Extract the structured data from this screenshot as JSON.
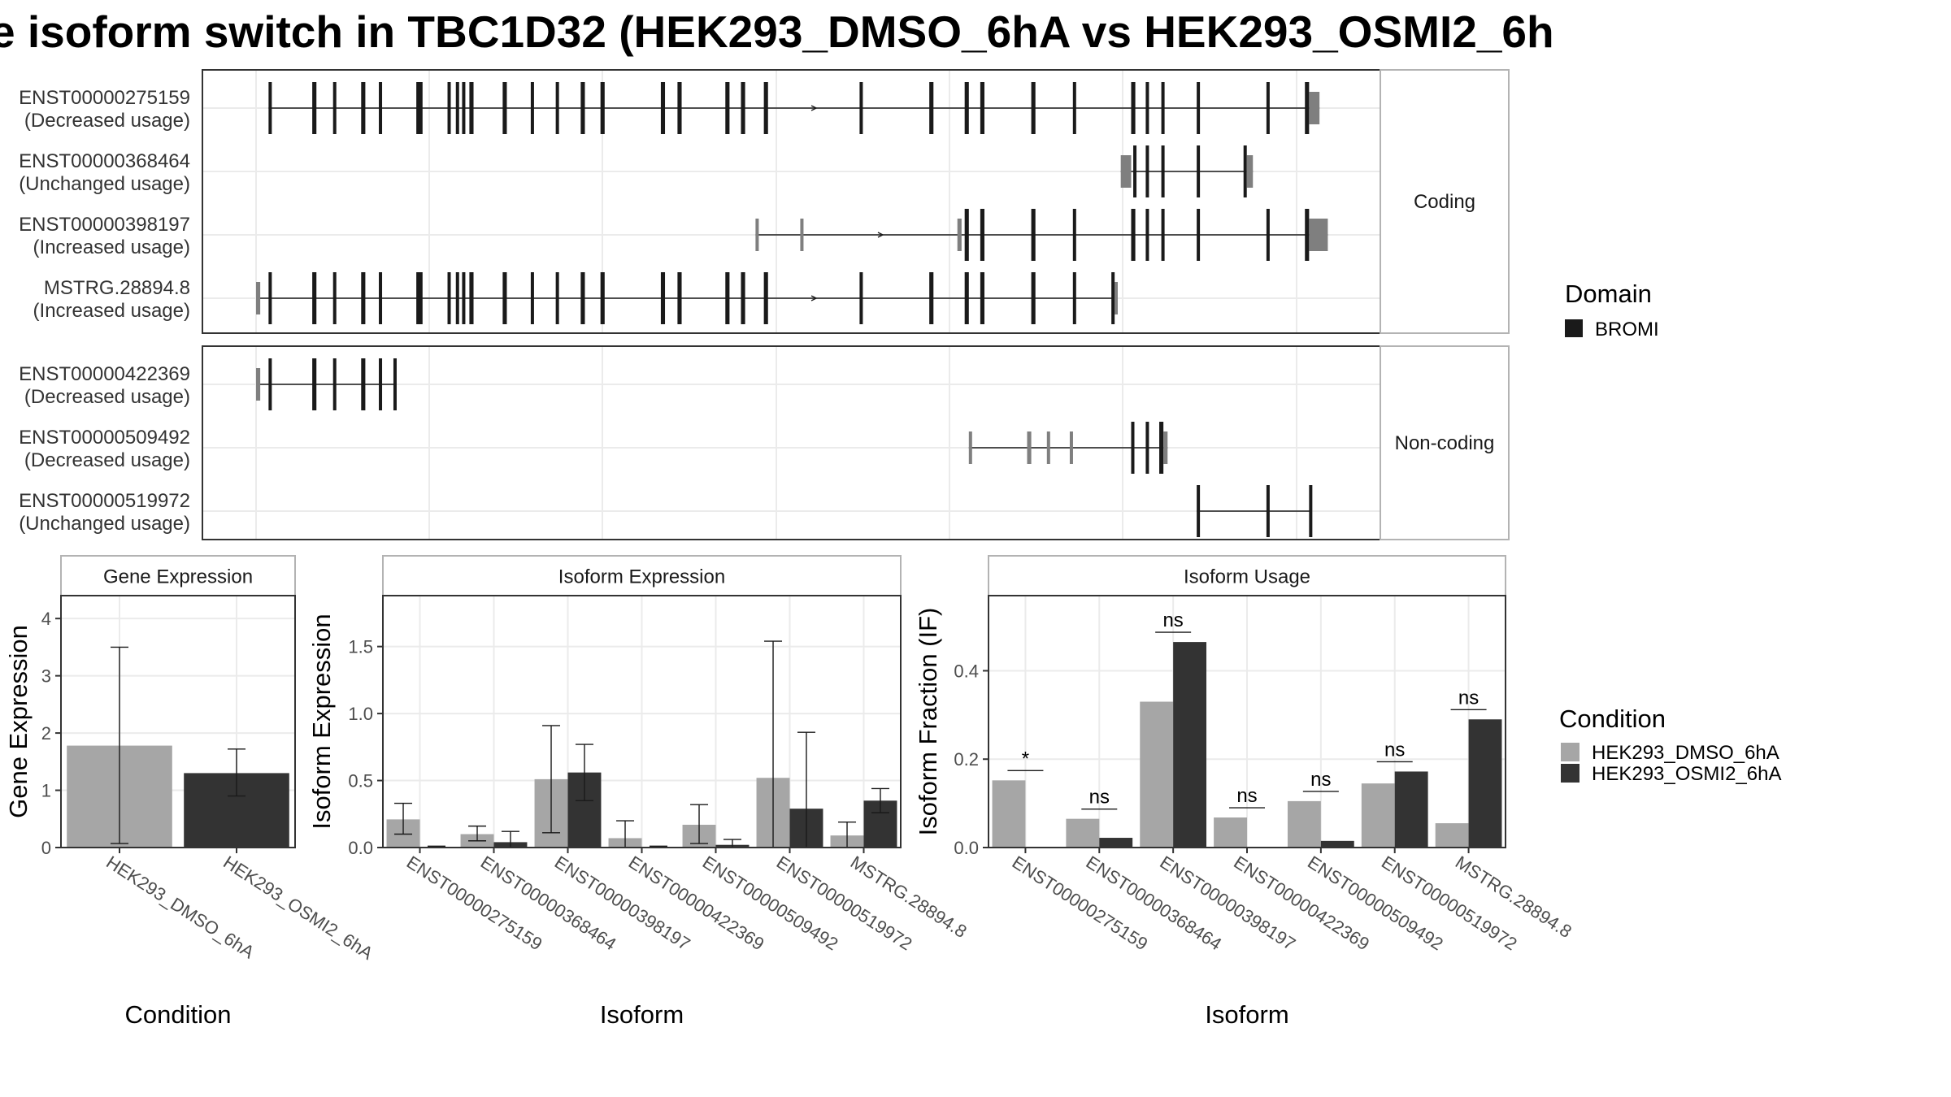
{
  "chart_data": [
    {
      "type": "gene-structure",
      "title": "e isoform switch in TBC1D32 (HEK293_DMSO_6hA vs HEK293_OSMI2_6h",
      "domain_legend": {
        "title": "Domain",
        "entries": [
          {
            "name": "BROMI",
            "color": "#1a1a1a"
          }
        ]
      },
      "panels": [
        {
          "label": "Coding",
          "rows": [
            {
              "isoform": "ENST00000275159",
              "usage": "(Decreased usage)",
              "exons": [
                [
                  0.012,
                  0.015,
                  "d"
                ],
                [
                  0.054,
                  0.058,
                  "d"
                ],
                [
                  0.074,
                  0.077,
                  "d"
                ],
                [
                  0.101,
                  0.105,
                  "d"
                ],
                [
                  0.118,
                  0.121,
                  "d"
                ],
                [
                  0.154,
                  0.16,
                  "d"
                ],
                [
                  0.184,
                  0.187,
                  "d"
                ],
                [
                  0.192,
                  0.194,
                  "d"
                ],
                [
                  0.198,
                  0.2,
                  "d"
                ],
                [
                  0.205,
                  0.209,
                  "d"
                ],
                [
                  0.237,
                  0.241,
                  "d"
                ],
                [
                  0.264,
                  0.267,
                  "d"
                ],
                [
                  0.288,
                  0.291,
                  "d"
                ],
                [
                  0.312,
                  0.316,
                  "d"
                ],
                [
                  0.331,
                  0.335,
                  "d"
                ],
                [
                  0.389,
                  0.393,
                  "d"
                ],
                [
                  0.405,
                  0.409,
                  "d"
                ],
                [
                  0.451,
                  0.455,
                  "d"
                ],
                [
                  0.466,
                  0.47,
                  "d"
                ],
                [
                  0.488,
                  0.492,
                  "d"
                ],
                [
                  0.58,
                  0.583,
                  "d"
                ],
                [
                  0.647,
                  0.651,
                  "d"
                ],
                [
                  0.681,
                  0.685,
                  "d"
                ],
                [
                  0.696,
                  0.7,
                  "d"
                ],
                [
                  0.745,
                  0.749,
                  "d"
                ],
                [
                  0.785,
                  0.788,
                  "d"
                ],
                [
                  0.841,
                  0.845,
                  "d"
                ],
                [
                  0.855,
                  0.858,
                  "d"
                ],
                [
                  0.87,
                  0.873,
                  "d"
                ],
                [
                  0.904,
                  0.907,
                  "d"
                ],
                [
                  0.971,
                  0.974,
                  "d"
                ],
                [
                  1.008,
                  1.012,
                  "d"
                ],
                [
                  1.012,
                  1.022,
                  "g"
                ]
              ]
            },
            {
              "isoform": "ENST00000368464",
              "usage": "(Unchanged usage)",
              "exons": [
                [
                  0.831,
                  0.841,
                  "g"
                ],
                [
                  0.843,
                  0.845,
                  "d"
                ],
                [
                  0.855,
                  0.858,
                  "d"
                ],
                [
                  0.87,
                  0.873,
                  "d"
                ],
                [
                  0.904,
                  0.907,
                  "d"
                ],
                [
                  0.949,
                  0.952,
                  "d"
                ],
                [
                  0.952,
                  0.958,
                  "g"
                ]
              ]
            },
            {
              "isoform": "ENST00000398197",
              "usage": "(Increased usage)",
              "exons": [
                [
                  0.48,
                  0.483,
                  "g"
                ],
                [
                  0.523,
                  0.526,
                  "g"
                ],
                [
                  0.674,
                  0.678,
                  "g"
                ],
                [
                  0.681,
                  0.685,
                  "d"
                ],
                [
                  0.696,
                  0.7,
                  "d"
                ],
                [
                  0.745,
                  0.749,
                  "d"
                ],
                [
                  0.785,
                  0.788,
                  "d"
                ],
                [
                  0.841,
                  0.845,
                  "d"
                ],
                [
                  0.855,
                  0.858,
                  "d"
                ],
                [
                  0.87,
                  0.873,
                  "d"
                ],
                [
                  0.904,
                  0.907,
                  "d"
                ],
                [
                  0.971,
                  0.974,
                  "d"
                ],
                [
                  1.008,
                  1.012,
                  "d"
                ],
                [
                  1.012,
                  1.03,
                  "g"
                ]
              ]
            },
            {
              "isoform": "MSTRG.28894.8",
              "usage": "(Increased usage)",
              "exons": [
                [
                  0.0,
                  0.004,
                  "g"
                ],
                [
                  0.012,
                  0.015,
                  "d"
                ],
                [
                  0.054,
                  0.058,
                  "d"
                ],
                [
                  0.074,
                  0.077,
                  "d"
                ],
                [
                  0.101,
                  0.105,
                  "d"
                ],
                [
                  0.118,
                  0.121,
                  "d"
                ],
                [
                  0.154,
                  0.16,
                  "d"
                ],
                [
                  0.184,
                  0.187,
                  "d"
                ],
                [
                  0.192,
                  0.194,
                  "d"
                ],
                [
                  0.198,
                  0.2,
                  "d"
                ],
                [
                  0.205,
                  0.209,
                  "d"
                ],
                [
                  0.237,
                  0.241,
                  "d"
                ],
                [
                  0.264,
                  0.267,
                  "d"
                ],
                [
                  0.288,
                  0.291,
                  "d"
                ],
                [
                  0.312,
                  0.316,
                  "d"
                ],
                [
                  0.331,
                  0.335,
                  "d"
                ],
                [
                  0.389,
                  0.393,
                  "d"
                ],
                [
                  0.405,
                  0.409,
                  "d"
                ],
                [
                  0.451,
                  0.455,
                  "d"
                ],
                [
                  0.466,
                  0.47,
                  "d"
                ],
                [
                  0.488,
                  0.492,
                  "d"
                ],
                [
                  0.58,
                  0.583,
                  "d"
                ],
                [
                  0.647,
                  0.651,
                  "d"
                ],
                [
                  0.681,
                  0.685,
                  "d"
                ],
                [
                  0.696,
                  0.7,
                  "d"
                ],
                [
                  0.745,
                  0.749,
                  "d"
                ],
                [
                  0.785,
                  0.788,
                  "d"
                ],
                [
                  0.822,
                  0.825,
                  "d"
                ],
                [
                  0.825,
                  0.828,
                  "g"
                ]
              ]
            }
          ]
        },
        {
          "label": "Non-coding",
          "rows": [
            {
              "isoform": "ENST00000422369",
              "usage": "(Decreased usage)",
              "exons": [
                [
                  0.0,
                  0.004,
                  "g"
                ],
                [
                  0.012,
                  0.015,
                  "d"
                ],
                [
                  0.054,
                  0.058,
                  "d"
                ],
                [
                  0.074,
                  0.077,
                  "d"
                ],
                [
                  0.101,
                  0.105,
                  "d"
                ],
                [
                  0.118,
                  0.121,
                  "d"
                ],
                [
                  0.132,
                  0.135,
                  "d"
                ]
              ]
            },
            {
              "isoform": "ENST00000509492",
              "usage": "(Decreased usage)",
              "exons": [
                [
                  0.685,
                  0.688,
                  "g"
                ],
                [
                  0.741,
                  0.745,
                  "g"
                ],
                [
                  0.76,
                  0.763,
                  "g"
                ],
                [
                  0.782,
                  0.785,
                  "g"
                ],
                [
                  0.841,
                  0.843,
                  "d"
                ],
                [
                  0.855,
                  0.858,
                  "d"
                ],
                [
                  0.868,
                  0.872,
                  "d"
                ],
                [
                  0.872,
                  0.876,
                  "g"
                ]
              ]
            },
            {
              "isoform": "ENST00000519972",
              "usage": "(Unchanged usage)",
              "exons": [
                [
                  0.904,
                  0.907,
                  "d"
                ],
                [
                  0.971,
                  0.974,
                  "d"
                ],
                [
                  1.012,
                  1.014,
                  "d"
                ]
              ]
            }
          ]
        }
      ]
    },
    {
      "type": "bar",
      "title": "Gene Expression",
      "xlabel": "Condition",
      "ylabel": "Gene Expression",
      "ylim": [
        0,
        4.4
      ],
      "yticks": [
        0,
        1,
        2,
        3,
        4
      ],
      "categories": [
        "HEK293_DMSO_6hA",
        "HEK293_OSMI2_6hA"
      ],
      "values": [
        1.78,
        1.3
      ],
      "error_low": [
        0.07,
        0.9
      ],
      "error_high": [
        3.5,
        1.72
      ]
    },
    {
      "type": "bar",
      "title": "Isoform Expression",
      "xlabel": "Isoform",
      "ylabel": "Isoform Expression",
      "ylim": [
        0,
        1.88
      ],
      "yticks": [
        "0.0",
        "0.5",
        "1.0",
        "1.5"
      ],
      "categories": [
        "ENST00000275159",
        "ENST00000368464",
        "ENST00000398197",
        "ENST00000422369",
        "ENST00000509492",
        "ENST00000519972",
        "MSTRG.28894.8"
      ],
      "series": [
        {
          "name": "HEK293_DMSO_6hA",
          "values": [
            0.21,
            0.1,
            0.51,
            0.07,
            0.17,
            0.52,
            0.09
          ],
          "error_low": [
            0.1,
            0.05,
            0.11,
            0.0,
            0.03,
            0.0,
            0.0
          ],
          "error_high": [
            0.33,
            0.16,
            0.91,
            0.2,
            0.32,
            1.54,
            0.19
          ]
        },
        {
          "name": "HEK293_OSMI2_6hA",
          "values": [
            0.005,
            0.04,
            0.56,
            0.005,
            0.02,
            0.29,
            0.35
          ],
          "error_low": [
            0.0,
            0.0,
            0.35,
            0.0,
            0.0,
            0.0,
            0.26
          ],
          "error_high": [
            0.01,
            0.12,
            0.77,
            0.01,
            0.06,
            0.86,
            0.44
          ]
        }
      ]
    },
    {
      "type": "bar",
      "title": "Isoform Usage",
      "xlabel": "Isoform",
      "ylabel": "Isoform Fraction (IF)",
      "ylim": [
        0,
        0.57
      ],
      "yticks": [
        "0.0",
        "0.2",
        "0.4"
      ],
      "categories": [
        "ENST00000275159",
        "ENST00000368464",
        "ENST00000398197",
        "ENST00000422369",
        "ENST00000509492",
        "ENST00000519972",
        "MSTRG.28894.8"
      ],
      "series": [
        {
          "name": "HEK293_DMSO_6hA",
          "values": [
            0.152,
            0.065,
            0.33,
            0.068,
            0.105,
            0.145,
            0.055
          ]
        },
        {
          "name": "HEK293_OSMI2_6hA",
          "values": [
            0.0,
            0.022,
            0.465,
            0.0,
            0.015,
            0.172,
            0.29
          ]
        }
      ],
      "significance": [
        "*",
        "ns",
        "ns",
        "ns",
        "ns",
        "ns",
        "ns"
      ]
    }
  ],
  "condition_legend": {
    "title": "Condition",
    "entries": [
      {
        "name": "HEK293_DMSO_6hA",
        "color": "#a6a6a6"
      },
      {
        "name": "HEK293_OSMI2_6hA",
        "color": "#333333"
      }
    ]
  },
  "colors": {
    "domain_exon": "#1a1a1a",
    "nondomain_exon": "#7f7f7f",
    "panel_border": "#333333",
    "grid": "#ebebeb",
    "strip_border": "#b3b3b3"
  }
}
